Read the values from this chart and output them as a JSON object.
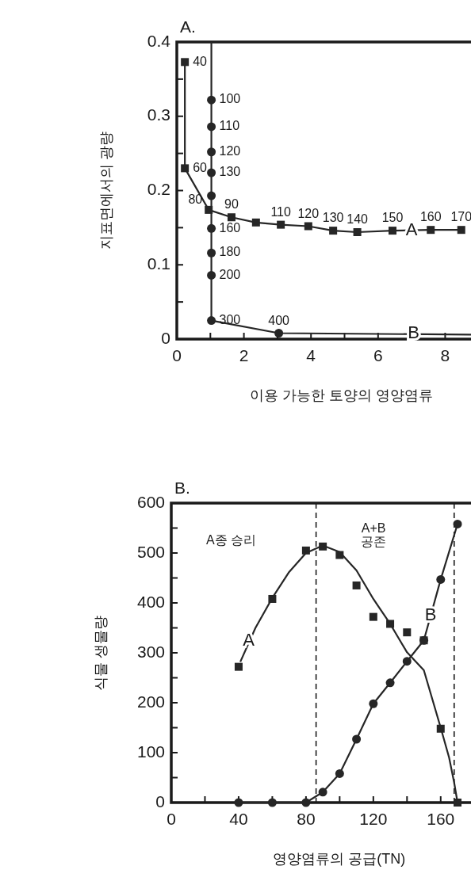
{
  "chart_data": [
    {
      "type": "line",
      "title": "A.",
      "xlabel": "이용 가능한 토양의 영양염류",
      "ylabel": "지표면에서의 광량",
      "xlim": [
        0,
        8.77
      ],
      "ylim": [
        0,
        0.4
      ],
      "xticks": [
        0,
        {
          "value": 1,
          "label": null
        },
        2,
        {
          "value": 3,
          "label": null
        },
        4,
        {
          "value": 5,
          "label": null
        },
        6,
        {
          "value": 7,
          "label": null
        },
        8
      ],
      "yticks": [
        0,
        {
          "value": 0.05,
          "label": null
        },
        0.1,
        {
          "value": 0.15,
          "label": null
        },
        0.2,
        {
          "value": 0.25,
          "label": null
        },
        0.3,
        {
          "value": 0.35,
          "label": null
        },
        0.4
      ],
      "series": [
        {
          "type": "line",
          "marker": "square",
          "color": "#262626",
          "x": [
            0.24,
            0.24,
            0.95,
            1.63,
            2.36,
            3.1,
            3.92,
            4.66,
            5.38,
            6.43,
            7.57,
            8.48
          ],
          "values": [
            0.373,
            0.23,
            0.174,
            0.164,
            0.157,
            0.154,
            0.152,
            0.146,
            0.144,
            0.146,
            0.147,
            0.147
          ]
        },
        {
          "type": "line",
          "marker": "none",
          "color": "#262626",
          "x": [
            1.03,
            1.03,
            3.04,
            8.77
          ],
          "values": [
            0.4,
            0.025,
            0.008,
            0.006
          ]
        },
        {
          "type": "scatter",
          "marker": "circle",
          "color": "#262626",
          "x": [
            1.03,
            1.03,
            1.03,
            1.03,
            1.03,
            1.03,
            1.03,
            1.03,
            1.03,
            3.04
          ],
          "values": [
            0.322,
            0.286,
            0.252,
            0.224,
            0.193,
            0.149,
            0.116,
            0.086,
            0.025,
            0.008
          ]
        }
      ],
      "annotations": [
        {
          "text": "40",
          "x": 0.24,
          "y": 0.373
        },
        {
          "text": "60",
          "x": 0.24,
          "y": 0.23
        },
        {
          "text": "80",
          "x": 0.95,
          "y": 0.174
        },
        {
          "text": "90",
          "x": 1.63,
          "y": 0.164
        },
        {
          "text": "110",
          "x": 3.1,
          "y": 0.154
        },
        {
          "text": "120",
          "x": 3.92,
          "y": 0.152
        },
        {
          "text": "130",
          "x": 4.66,
          "y": 0.146
        },
        {
          "text": "140",
          "x": 5.38,
          "y": 0.144
        },
        {
          "text": "150",
          "x": 6.43,
          "y": 0.146
        },
        {
          "text": "160",
          "x": 7.57,
          "y": 0.147
        },
        {
          "text": "170",
          "x": 8.48,
          "y": 0.147
        },
        {
          "text": "100",
          "x": 1.03,
          "y": 0.322
        },
        {
          "text": "110",
          "x": 1.03,
          "y": 0.286
        },
        {
          "text": "120",
          "x": 1.03,
          "y": 0.252
        },
        {
          "text": "130",
          "x": 1.03,
          "y": 0.224
        },
        {
          "text": "160",
          "x": 1.03,
          "y": 0.149
        },
        {
          "text": "180",
          "x": 1.03,
          "y": 0.116
        },
        {
          "text": "200",
          "x": 1.03,
          "y": 0.086
        },
        {
          "text": "300",
          "x": 1.03,
          "y": 0.025
        },
        {
          "text": "400",
          "x": 3.04,
          "y": 0.008
        },
        {
          "text": "A",
          "x": 7.0,
          "y": 0.1464
        },
        {
          "text": "B",
          "x": 7.06,
          "y": 0.0068
        }
      ]
    },
    {
      "type": "line",
      "title": "B.",
      "xlabel": "영양염류의 공급(TN)",
      "ylabel": "식물 생물량",
      "xlim": [
        0,
        178
      ],
      "ylim": [
        0,
        600
      ],
      "xticks": [
        0,
        {
          "value": 20,
          "label": null
        },
        40,
        {
          "value": 60,
          "label": null
        },
        80,
        {
          "value": 100,
          "label": null
        },
        120,
        {
          "value": 140,
          "label": null
        },
        160
      ],
      "yticks": [
        0,
        {
          "value": 50,
          "label": null
        },
        100,
        {
          "value": 150,
          "label": null
        },
        200,
        {
          "value": 250,
          "label": null
        },
        300,
        {
          "value": 350,
          "label": null
        },
        400,
        {
          "value": 450,
          "label": null
        },
        500,
        {
          "value": 550,
          "label": null
        },
        600
      ],
      "series": [
        {
          "type": "scatter",
          "marker": "square",
          "color": "#262626",
          "x": [
            40,
            60,
            80,
            90,
            100,
            110,
            120,
            130,
            140,
            150,
            160,
            170
          ],
          "values": [
            272,
            408,
            505,
            513,
            496,
            435,
            372,
            358,
            341,
            325,
            148,
            0
          ]
        },
        {
          "type": "line",
          "marker": "none",
          "color": "#262626",
          "x": [
            41,
            50,
            60,
            70,
            80,
            90,
            100,
            110,
            120,
            130,
            140,
            150,
            160,
            165,
            168,
            170
          ],
          "values": [
            282,
            350,
            410,
            462,
            500,
            515,
            502,
            465,
            408,
            358,
            301,
            265,
            150,
            90,
            40,
            0
          ]
        },
        {
          "type": "line",
          "marker": "circle",
          "color": "#262626",
          "x": [
            40,
            60,
            80,
            90,
            100,
            110,
            120,
            130,
            140,
            150,
            160,
            170
          ],
          "values": [
            0,
            0,
            0,
            21,
            58,
            127,
            198,
            240,
            283,
            325,
            447,
            558
          ]
        }
      ],
      "ref_lines": [
        {
          "axis": "x",
          "value": 86,
          "line_style": "dashed"
        },
        {
          "axis": "x",
          "value": 168,
          "line_style": "dashed"
        }
      ],
      "annotations": [
        "A종 승리",
        "A+B\n공존",
        {
          "text": "A",
          "x": 46,
          "y": 323
        },
        {
          "text": "B",
          "x": 154,
          "y": 374
        }
      ]
    }
  ]
}
